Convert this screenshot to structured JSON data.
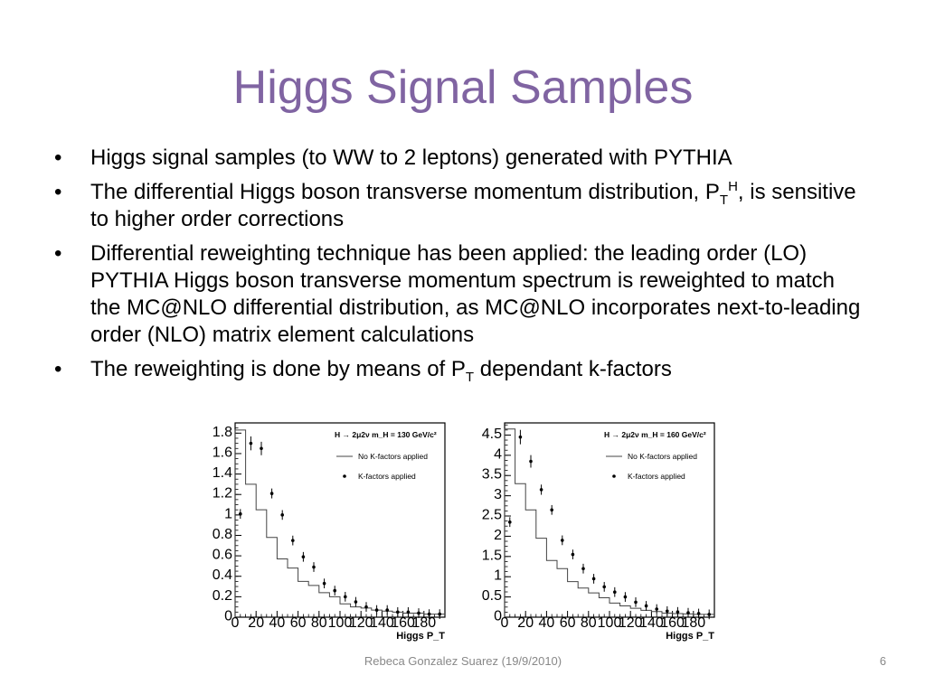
{
  "title": "Higgs Signal Samples",
  "bullets": {
    "b1": "Higgs signal samples (to WW to 2 leptons) generated with PYTHIA",
    "b2_pre": "The differential Higgs boson transverse momentum distribution, P",
    "b2_sub": "T",
    "b2_sup": "H",
    "b2_post": ", is sensitive to higher order corrections",
    "b3": "Differential reweighting technique has been applied: the leading order (LO) PYTHIA Higgs boson transverse momentum spectrum is reweighted to match the MC@NLO differential distribution, as MC@NLO incorporates next-to-leading order (NLO) matrix element calculations",
    "b4_pre": "The reweighting is done by means of P",
    "b4_sub": "T",
    "b4_post": " dependant k-factors"
  },
  "footer": "Rebeca Gonzalez Suarez (19/9/2010)",
  "page_number": "6",
  "chart_data": [
    {
      "type": "line",
      "title": "H → 2μ2ν m_H = 130 GeV/c²",
      "xlabel": "Higgs P_T",
      "ylabel": "",
      "xlim": [
        0,
        200
      ],
      "ylim": [
        0,
        1.9
      ],
      "x_ticks": [
        "0",
        "20",
        "40",
        "60",
        "80",
        "100",
        "120",
        "140",
        "160",
        "180"
      ],
      "y_ticks": [
        "0",
        "0.2",
        "0.4",
        "0.6",
        "0.8",
        "1",
        "1.2",
        "1.4",
        "1.6",
        "1.8"
      ],
      "legend": [
        "No K-factors applied",
        "K-factors applied"
      ],
      "x": [
        5,
        15,
        25,
        35,
        45,
        55,
        65,
        75,
        85,
        95,
        105,
        115,
        125,
        135,
        145,
        155,
        165,
        175,
        185,
        195
      ],
      "series": [
        {
          "name": "No K-factors applied",
          "values": [
            1.83,
            1.3,
            1.05,
            0.78,
            0.57,
            0.48,
            0.35,
            0.31,
            0.24,
            0.2,
            0.13,
            0.1,
            0.09,
            0.07,
            0.06,
            0.05,
            0.04,
            0.04,
            0.03,
            0.03
          ]
        },
        {
          "name": "K-factors applied",
          "values": [
            1.01,
            1.7,
            1.65,
            1.21,
            1.0,
            0.75,
            0.59,
            0.49,
            0.33,
            0.26,
            0.2,
            0.15,
            0.1,
            0.07,
            0.07,
            0.05,
            0.05,
            0.04,
            0.03,
            0.03
          ]
        }
      ]
    },
    {
      "type": "line",
      "title": "H → 2μ2ν m_H = 160 GeV/c²",
      "xlabel": "Higgs P_T",
      "ylabel": "",
      "xlim": [
        0,
        200
      ],
      "ylim": [
        0,
        4.8
      ],
      "x_ticks": [
        "0",
        "20",
        "40",
        "60",
        "80",
        "100",
        "120",
        "140",
        "160",
        "180"
      ],
      "y_ticks": [
        "0",
        "0.5",
        "1",
        "1.5",
        "2",
        "2.5",
        "3",
        "3.5",
        "4",
        "4.5"
      ],
      "legend": [
        "No K-factors applied",
        "K-factors applied"
      ],
      "x": [
        5,
        15,
        25,
        35,
        45,
        55,
        65,
        75,
        85,
        95,
        105,
        115,
        125,
        135,
        145,
        155,
        165,
        175,
        185,
        195
      ],
      "series": [
        {
          "name": "No K-factors applied",
          "values": [
            4.65,
            3.3,
            2.65,
            1.95,
            1.4,
            1.2,
            0.88,
            0.72,
            0.6,
            0.48,
            0.35,
            0.28,
            0.22,
            0.17,
            0.14,
            0.1,
            0.09,
            0.08,
            0.07,
            0.07
          ]
        },
        {
          "name": "K-factors applied",
          "values": [
            2.35,
            4.45,
            3.85,
            3.15,
            2.65,
            1.9,
            1.55,
            1.2,
            0.95,
            0.75,
            0.62,
            0.5,
            0.37,
            0.28,
            0.2,
            0.15,
            0.13,
            0.11,
            0.09,
            0.07
          ]
        }
      ]
    }
  ]
}
